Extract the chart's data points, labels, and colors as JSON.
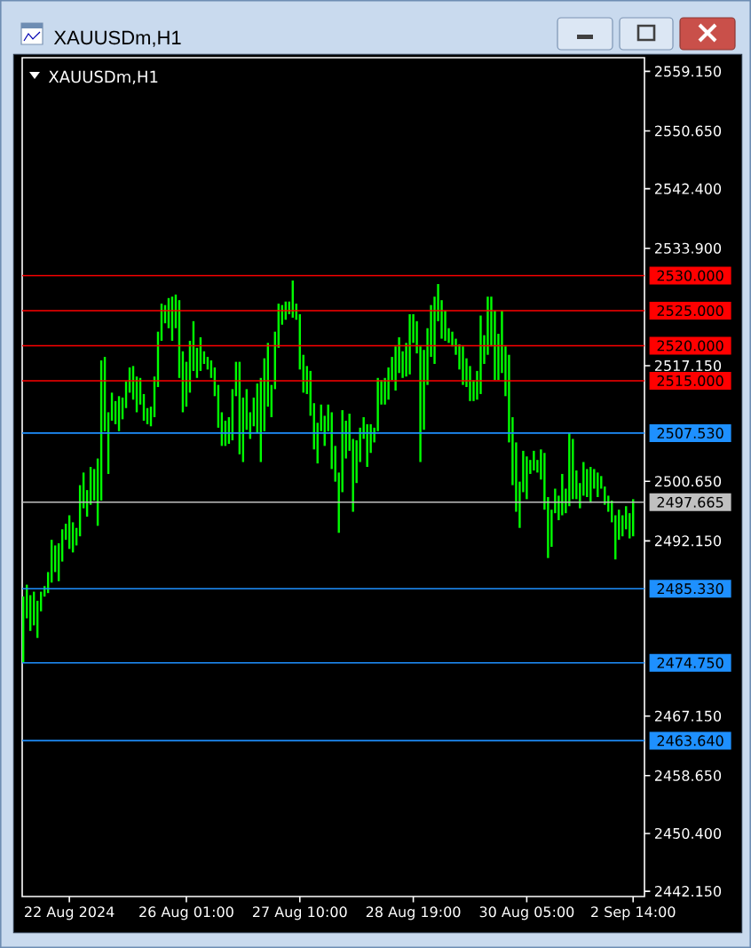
{
  "chart_data": {
    "type": "bar",
    "title": "XAUUSDm,H1",
    "annotations": [
      "XAUUSDm,H1"
    ],
    "categories": [
      null,
      null,
      null,
      null,
      null,
      null,
      null,
      null,
      null,
      null,
      null,
      null,
      null,
      "22 Aug 2024",
      null,
      null,
      null,
      null,
      null,
      null,
      null,
      null,
      null,
      null,
      null,
      null,
      null,
      null,
      null,
      null,
      null,
      null,
      null,
      null,
      null,
      null,
      null,
      null,
      null,
      null,
      null,
      null,
      null,
      null,
      null,
      null,
      "26 Aug 01:00",
      null,
      null,
      null,
      null,
      null,
      null,
      null,
      null,
      null,
      null,
      null,
      null,
      null,
      null,
      null,
      null,
      null,
      null,
      null,
      null,
      null,
      null,
      null,
      null,
      null,
      null,
      null,
      null,
      null,
      null,
      null,
      "27 Aug 10:00",
      null,
      null,
      null,
      null,
      null,
      null,
      null,
      null,
      null,
      null,
      null,
      null,
      null,
      null,
      null,
      null,
      null,
      null,
      null,
      null,
      null,
      null,
      null,
      null,
      null,
      null,
      null,
      null,
      null,
      null,
      null,
      "28 Aug 19:00",
      null,
      null,
      null,
      null,
      null,
      null,
      null,
      null,
      null,
      null,
      null,
      null,
      null,
      null,
      null,
      null,
      null,
      null,
      null,
      null,
      null,
      null,
      null,
      null,
      null,
      null,
      null,
      null,
      null,
      null,
      null,
      "30 Aug 05:00",
      null,
      null,
      null,
      null,
      null,
      null,
      null,
      null,
      null,
      null,
      null,
      null,
      null,
      null,
      null,
      null,
      null,
      null,
      null,
      null,
      null,
      null,
      null,
      null,
      null,
      null,
      null,
      null,
      null,
      "2 Sep 14:00"
    ],
    "base": [
      2474.7,
      2481.1,
      2479.3,
      2480.1,
      2478.3,
      2482.1,
      2484.2,
      2484.7,
      2486.2,
      2487.7,
      2486.4,
      2489.2,
      2492.3,
      2491.0,
      2490.5,
      2491.5,
      2492.8,
      2496.8,
      2495.6,
      2497.3,
      2497.9,
      2494.3,
      2497.9,
      2507.8,
      2501.7,
      2509.3,
      2508.8,
      2507.8,
      2509.5,
      2511.1,
      2513.3,
      2512.3,
      2510.5,
      2511.6,
      2509.3,
      2508.8,
      2508.5,
      2509.8,
      2514.1,
      2520.7,
      2523.2,
      2522.5,
      2520.7,
      2522.5,
      2515.4,
      2510.5,
      2511.3,
      2513.3,
      2516.4,
      2515.4,
      2516.4,
      2517.4,
      2516.6,
      2515.4,
      2512.8,
      2508.3,
      2505.7,
      2505.7,
      2506.0,
      2506.5,
      2512.8,
      2504.5,
      2503.4,
      2508.0,
      2506.7,
      2508.5,
      2507.5,
      2503.4,
      2507.8,
      2511.3,
      2509.8,
      2513.8,
      2519.7,
      2523.0,
      2523.7,
      2524.5,
      2524.0,
      2523.7,
      2516.6,
      2513.3,
      2513.1,
      2510.0,
      2505.2,
      2503.2,
      2507.8,
      2505.7,
      2507.8,
      2502.4,
      2500.6,
      2493.3,
      2499.1,
      2503.9,
      2505.0,
      2496.3,
      2500.4,
      2503.4,
      2506.7,
      2502.7,
      2504.7,
      2506.2,
      2507.8,
      2511.6,
      2511.6,
      2512.3,
      2515.1,
      2513.6,
      2516.1,
      2515.4,
      2515.6,
      2515.9,
      2520.4,
      2518.9,
      2503.4,
      2508.0,
      2514.4,
      2518.4,
      2517.4,
      2523.5,
      2521.0,
      2520.7,
      2520.4,
      2519.9,
      2518.7,
      2516.6,
      2514.4,
      2514.1,
      2512.1,
      2512.1,
      2512.3,
      2513.1,
      2517.4,
      2518.7,
      2519.9,
      2515.1,
      2515.1,
      2516.1,
      2512.8,
      2506.2,
      2500.1,
      2496.3,
      2494.0,
      2499.1,
      2498.1,
      2501.7,
      2502.2,
      2501.9,
      2500.9,
      2496.6,
      2489.7,
      2491.3,
      2496.1,
      2495.1,
      2495.8,
      2496.1,
      2497.1,
      2498.1,
      2498.1,
      2496.8,
      2498.6,
      2498.4,
      2497.6,
      2499.6,
      2498.4,
      2499.6,
      2497.3,
      2496.3,
      2494.8,
      2489.5,
      2492.3,
      2492.8,
      2493.8,
      2492.5,
      2492.8
    ],
    "values": [
      9.5,
      4.8,
      5.1,
      4.8,
      5.3,
      2.8,
      1.5,
      3.0,
      6.1,
      3.8,
      5.4,
      4.6,
      2.3,
      4.8,
      4.3,
      2.5,
      7.3,
      5.1,
      3.8,
      5.4,
      4.5,
      9.6,
      20.0,
      10.6,
      8.8,
      4.0,
      3.3,
      5.0,
      3.1,
      3.8,
      3.6,
      4.8,
      5.1,
      3.8,
      3.8,
      2.3,
      2.8,
      5.8,
      7.9,
      5.3,
      2.6,
      4.3,
      6.3,
      4.8,
      11.1,
      8.7,
      6.4,
      7.4,
      7.1,
      4.3,
      4.8,
      1.8,
      1.8,
      2.5,
      4.1,
      6.1,
      4.8,
      3.6,
      3.8,
      7.3,
      4.9,
      13.2,
      9.2,
      5.8,
      3.8,
      4.1,
      7.1,
      12.0,
      10.4,
      9.1,
      4.6,
      8.2,
      6.3,
      2.8,
      2.6,
      1.8,
      5.3,
      2.3,
      7.9,
      5.4,
      4.0,
      6.4,
      6.6,
      5.8,
      3.8,
      4.3,
      3.8,
      8.1,
      5.1,
      8.6,
      11.7,
      5.4,
      5.3,
      10.4,
      6.1,
      4.9,
      3.1,
      6.1,
      4.1,
      2.1,
      7.6,
      3.5,
      3.8,
      4.6,
      3.3,
      6.3,
      5.1,
      3.8,
      4.8,
      8.6,
      4.1,
      4.6,
      16.5,
      11.4,
      8.1,
      7.4,
      9.6,
      5.3,
      5.5,
      4.3,
      2.1,
      2.1,
      2.3,
      3.6,
      5.5,
      4.1,
      5.0,
      3.0,
      4.1,
      11.2,
      4.1,
      8.3,
      7.1,
      9.9,
      6.6,
      8.9,
      7.1,
      12.5,
      9.7,
      9.9,
      6.6,
      5.9,
      6.1,
      2.0,
      2.8,
      1.8,
      4.3,
      8.1,
      8.7,
      5.3,
      3.5,
      3.5,
      5.9,
      3.5,
      10.4,
      8.6,
      4.1,
      3.6,
      4.8,
      4.0,
      5.1,
      2.8,
      3.5,
      1.8,
      2.6,
      2.3,
      3.1,
      6.3,
      4.3,
      3.0,
      3.3,
      3.6,
      5.3
    ],
    "color": "#00ff00",
    "ylim": [
      2441.4,
      2561.1
    ],
    "yticks": [
      {
        "value": 2559.15,
        "label": "2559.150"
      },
      {
        "value": 2550.65,
        "label": "2550.650"
      },
      {
        "value": 2542.4,
        "label": "2542.400"
      },
      {
        "value": 2533.9,
        "label": "2533.900"
      },
      {
        "value": 2517.15,
        "label": "2517.150"
      },
      {
        "value": 2500.65,
        "label": "2500.650"
      },
      {
        "value": 2492.15,
        "label": "2492.150"
      },
      {
        "value": 2467.15,
        "label": "2467.150"
      },
      {
        "value": 2458.65,
        "label": "2458.650"
      },
      {
        "value": 2450.4,
        "label": "2450.400"
      },
      {
        "value": 2442.15,
        "label": "2442.150"
      }
    ],
    "ref_lines": [
      {
        "axis": "y",
        "value": 2530,
        "label": "2530.000",
        "color": "#ff0000"
      },
      {
        "axis": "y",
        "value": 2525,
        "label": "2525.000",
        "color": "#ff0000"
      },
      {
        "axis": "y",
        "value": 2520,
        "label": "2520.000",
        "color": "#ff0000"
      },
      {
        "axis": "y",
        "value": 2515,
        "label": "2515.000",
        "color": "#ff0000"
      },
      {
        "axis": "y",
        "value": 2507.53,
        "label": "2507.530",
        "color": "#1e90ff"
      },
      {
        "axis": "y",
        "value": 2497.665,
        "label": "2497.665",
        "color": "#c0c0c0"
      },
      {
        "axis": "y",
        "value": 2485.33,
        "label": "2485.330",
        "color": "#1e90ff"
      },
      {
        "axis": "y",
        "value": 2474.75,
        "label": "2474.750",
        "color": "#1e90ff"
      },
      {
        "axis": "y",
        "value": 2463.64,
        "label": "2463.640",
        "color": "#1e90ff"
      }
    ]
  }
}
